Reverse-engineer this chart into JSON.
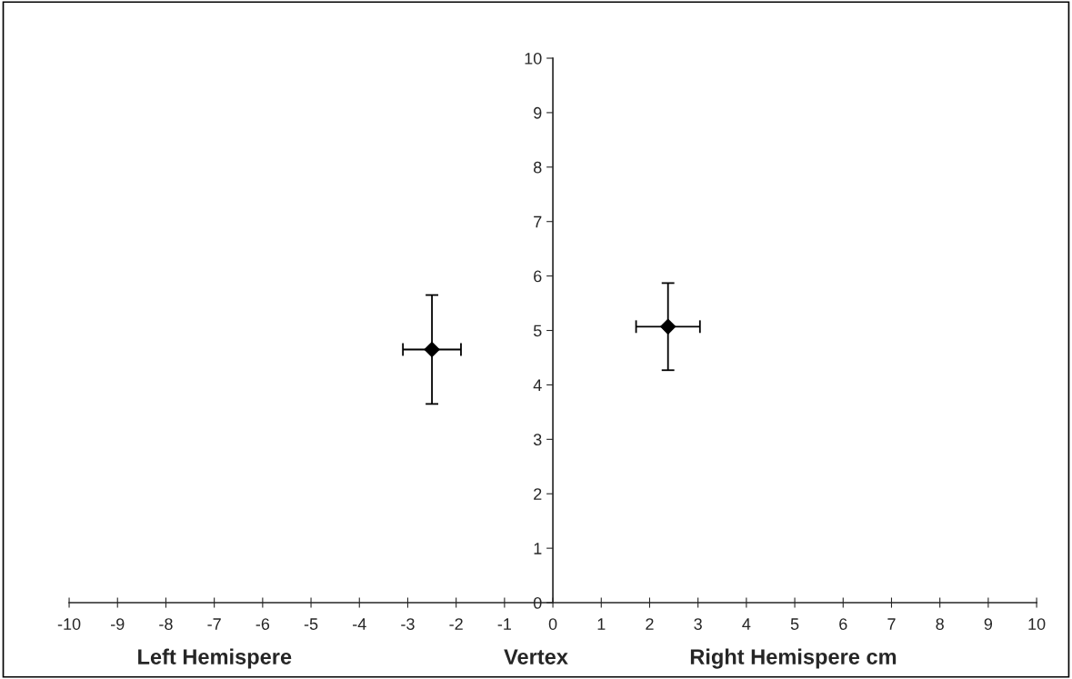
{
  "chart_data": {
    "type": "scatter",
    "x": [
      -2.5,
      2.38
    ],
    "values": [
      4.65,
      5.07
    ],
    "errors": [
      1.0,
      0.8
    ],
    "xerrors": [
      0.6,
      0.66
    ],
    "color": "#000000",
    "marker": "diamond",
    "xlim": [
      -10,
      10
    ],
    "xticks": [
      -10,
      -9,
      -8,
      -7,
      -6,
      -5,
      -4,
      -3,
      -2,
      -1,
      0,
      1,
      2,
      3,
      4,
      5,
      6,
      7,
      8,
      9,
      10
    ],
    "ylim": [
      0,
      10
    ],
    "yticks": [
      0,
      1,
      2,
      3,
      4,
      5,
      6,
      7,
      8,
      9,
      10
    ],
    "grid": false,
    "annotations": [
      "Left Hemispere",
      "Vertex",
      "Right Hemispere cm"
    ]
  }
}
